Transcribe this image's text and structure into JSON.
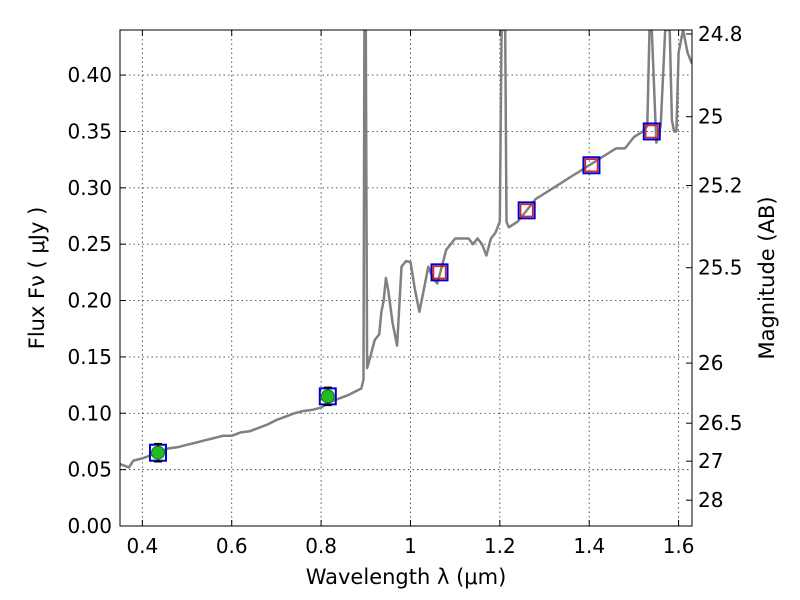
{
  "chart_data": {
    "type": "line",
    "xlabel": "Wavelength  λ (μm)",
    "ylabel": "Flux  Fν  ( μJy )",
    "ylabel_right": "Magnitude (AB)",
    "xlim": [
      0.35,
      1.63
    ],
    "ylim": [
      0.0,
      0.44
    ],
    "grid": true,
    "x_ticks": [
      0.4,
      0.6,
      0.8,
      1.0,
      1.2,
      1.4,
      1.6
    ],
    "x_tick_labels": [
      "0.4",
      "0.6",
      "0.8",
      "1",
      "1.2",
      "1.4",
      "1.6"
    ],
    "y_ticks": [
      0.0,
      0.05,
      0.1,
      0.15,
      0.2,
      0.25,
      0.3,
      0.35,
      0.4
    ],
    "y_tick_labels": [
      "0.00",
      "0.05",
      "0.10",
      "0.15",
      "0.20",
      "0.25",
      "0.30",
      "0.35",
      "0.40"
    ],
    "right_axis": {
      "labels": [
        "24.8",
        "25",
        "25.2",
        "25.5",
        "26",
        "26.5",
        "27",
        "28"
      ],
      "flux_equivalent": [
        0.4365,
        0.3631,
        0.302,
        0.2291,
        0.1445,
        0.0912,
        0.0575,
        0.0229
      ]
    },
    "series": [
      {
        "style": "spectrum",
        "color": "#808080",
        "x": [
          0.35,
          0.37,
          0.38,
          0.4,
          0.42,
          0.44,
          0.46,
          0.48,
          0.5,
          0.52,
          0.54,
          0.56,
          0.58,
          0.6,
          0.62,
          0.64,
          0.66,
          0.68,
          0.7,
          0.72,
          0.74,
          0.76,
          0.78,
          0.8,
          0.82,
          0.84,
          0.86,
          0.88,
          0.89,
          0.895,
          0.897,
          0.9,
          0.903,
          0.91,
          0.92,
          0.93,
          0.935,
          0.94,
          0.945,
          0.95,
          0.96,
          0.97,
          0.98,
          0.99,
          1.0,
          1.01,
          1.02,
          1.03,
          1.04,
          1.05,
          1.06,
          1.07,
          1.08,
          1.09,
          1.1,
          1.11,
          1.12,
          1.13,
          1.14,
          1.15,
          1.16,
          1.17,
          1.18,
          1.19,
          1.2,
          1.204,
          1.206,
          1.208,
          1.212,
          1.215,
          1.22,
          1.24,
          1.26,
          1.28,
          1.3,
          1.32,
          1.34,
          1.36,
          1.38,
          1.4,
          1.42,
          1.44,
          1.46,
          1.48,
          1.5,
          1.52,
          1.53,
          1.535,
          1.54,
          1.55,
          1.56,
          1.57,
          1.58,
          1.585,
          1.59,
          1.595,
          1.6,
          1.61,
          1.62,
          1.63
        ],
        "y": [
          0.055,
          0.052,
          0.058,
          0.06,
          0.063,
          0.066,
          0.069,
          0.07,
          0.072,
          0.074,
          0.076,
          0.078,
          0.08,
          0.08,
          0.083,
          0.084,
          0.087,
          0.09,
          0.094,
          0.097,
          0.1,
          0.102,
          0.103,
          0.105,
          0.11,
          0.113,
          0.116,
          0.12,
          0.122,
          0.13,
          0.44,
          0.44,
          0.14,
          0.15,
          0.165,
          0.17,
          0.19,
          0.2,
          0.22,
          0.21,
          0.18,
          0.16,
          0.23,
          0.235,
          0.234,
          0.21,
          0.19,
          0.21,
          0.23,
          0.22,
          0.215,
          0.23,
          0.245,
          0.25,
          0.255,
          0.255,
          0.255,
          0.255,
          0.25,
          0.255,
          0.25,
          0.24,
          0.255,
          0.26,
          0.27,
          0.44,
          0.44,
          0.44,
          0.44,
          0.27,
          0.265,
          0.27,
          0.28,
          0.29,
          0.295,
          0.3,
          0.305,
          0.31,
          0.315,
          0.32,
          0.325,
          0.33,
          0.335,
          0.335,
          0.345,
          0.35,
          0.355,
          0.44,
          0.44,
          0.34,
          0.355,
          0.44,
          0.44,
          0.36,
          0.35,
          0.35,
          0.42,
          0.44,
          0.42,
          0.41
        ]
      },
      {
        "style": "model-photometry",
        "marker": "square",
        "color": "#0000cc",
        "x": [
          0.435,
          0.815,
          1.065,
          1.26,
          1.405,
          1.54
        ],
        "y": [
          0.065,
          0.115,
          0.225,
          0.28,
          0.32,
          0.35
        ]
      },
      {
        "style": "observed-detection",
        "marker": "circle",
        "color": "#22bb22",
        "x": [
          0.435,
          0.815
        ],
        "y": [
          0.065,
          0.115
        ],
        "yerr": [
          0.008,
          0.008
        ]
      },
      {
        "style": "upper-limit",
        "marker": "square",
        "color": "#dd2222",
        "x": [
          1.065,
          1.26,
          1.405,
          1.54
        ],
        "y": [
          0.225,
          0.28,
          0.32,
          0.35
        ]
      }
    ]
  }
}
